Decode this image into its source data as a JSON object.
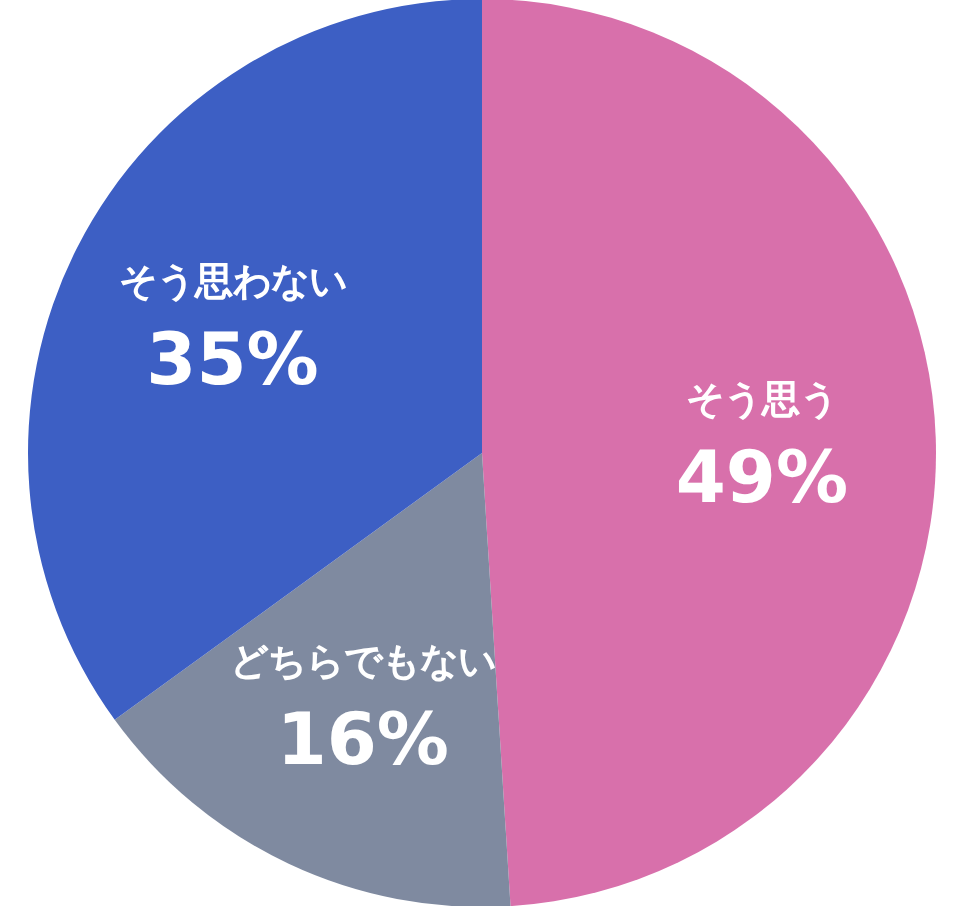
{
  "chart_data": {
    "type": "pie",
    "categories": [
      "そう思う",
      "どちらでもない",
      "そう思わない"
    ],
    "values": [
      49,
      16,
      35
    ],
    "colors": [
      "#d870ab",
      "#7f8aa0",
      "#3d5fc4"
    ],
    "value_labels": [
      "49%",
      "16%",
      "35%"
    ]
  }
}
